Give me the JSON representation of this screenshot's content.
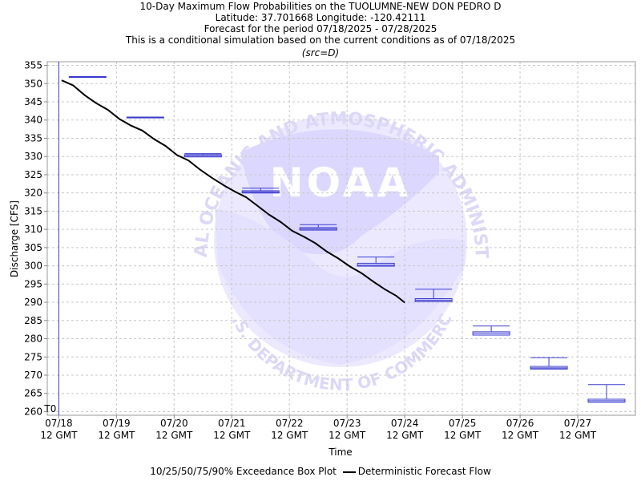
{
  "header": {
    "line1": "10-Day Maximum Flow Probabilities on the TUOLUMNE-NEW DON PEDRO D",
    "line2": "Latitude: 37.701668 Longitude: -120.42111",
    "line3": "Forecast for the period 07/18/2025 - 07/28/2025",
    "line4": "This is a conditional simulation based on the current conditions as of 07/18/2025",
    "line5": "(src=D)"
  },
  "watermark": {
    "logo_text": "NOAA",
    "arc_top": "NATIONAL OCEANIC AND ATMOSPHERIC ADMINISTRATION",
    "arc_bottom": "U.S. DEPARTMENT OF COMMERCE"
  },
  "legend": {
    "box_label": "10/25/50/75/90% Exceedance Box Plot",
    "line_label": "Deterministic Forecast Flow"
  },
  "chart_data": {
    "type": "box-and-line",
    "ylabel": "Discharge [CFS]",
    "xlabel": "Time",
    "ylim": [
      259,
      356
    ],
    "yticks": [
      260,
      265,
      270,
      275,
      280,
      285,
      290,
      295,
      300,
      305,
      310,
      315,
      320,
      325,
      330,
      335,
      340,
      345,
      350,
      355
    ],
    "xlim_days": [
      -0.2,
      10.0
    ],
    "x_ticks": [
      {
        "day": 0,
        "date": "07/18",
        "time": "12 GMT"
      },
      {
        "day": 1,
        "date": "07/19",
        "time": "12 GMT"
      },
      {
        "day": 2,
        "date": "07/20",
        "time": "12 GMT"
      },
      {
        "day": 3,
        "date": "07/21",
        "time": "12 GMT"
      },
      {
        "day": 4,
        "date": "07/22",
        "time": "12 GMT"
      },
      {
        "day": 5,
        "date": "07/23",
        "time": "12 GMT"
      },
      {
        "day": 6,
        "date": "07/24",
        "time": "12 GMT"
      },
      {
        "day": 7,
        "date": "07/25",
        "time": "12 GMT"
      },
      {
        "day": 8,
        "date": "07/26",
        "time": "12 GMT"
      },
      {
        "day": 9,
        "date": "07/27",
        "time": "12 GMT"
      }
    ],
    "t0": {
      "day": 0,
      "label": "T0"
    },
    "grid": true,
    "legend_position": "bottom",
    "colors": {
      "box": "#3b3bd0",
      "line": "#000000",
      "t0": "#3b3bd0",
      "grid": "#c8c8c8"
    },
    "exceedance_boxes": [
      {
        "day": 0.5,
        "p90": 351.9,
        "p75": 351.9,
        "p50": 351.9,
        "p25": 351.9,
        "p10": 351.9
      },
      {
        "day": 1.5,
        "p90": 340.8,
        "p75": 340.8,
        "p50": 340.8,
        "p25": 340.8,
        "p10": 340.8
      },
      {
        "day": 2.5,
        "p90": 330.8,
        "p75": 330.5,
        "p50": 330.3,
        "p25": 329.9,
        "p10": 329.9
      },
      {
        "day": 3.5,
        "p90": 321.3,
        "p75": 320.6,
        "p50": 320.3,
        "p25": 320.0,
        "p10": 320.0
      },
      {
        "day": 4.5,
        "p90": 311.3,
        "p75": 310.5,
        "p50": 310.1,
        "p25": 309.8,
        "p10": 309.8
      },
      {
        "day": 5.5,
        "p90": 302.4,
        "p75": 300.7,
        "p50": 300.2,
        "p25": 299.9,
        "p10": 299.9
      },
      {
        "day": 6.5,
        "p90": 293.6,
        "p75": 291.0,
        "p50": 290.6,
        "p25": 290.2,
        "p10": 290.2
      },
      {
        "day": 7.5,
        "p90": 283.5,
        "p75": 281.9,
        "p50": 281.5,
        "p25": 281.0,
        "p10": 281.0
      },
      {
        "day": 8.5,
        "p90": 274.8,
        "p75": 272.4,
        "p50": 272.0,
        "p25": 271.7,
        "p10": 271.7
      },
      {
        "day": 9.5,
        "p90": 267.4,
        "p75": 263.4,
        "p50": 263.0,
        "p25": 262.6,
        "p10": 262.6
      }
    ],
    "deterministic_flow": {
      "name": "Deterministic Forecast Flow",
      "days": [
        0.05,
        0.25,
        0.45,
        0.65,
        0.85,
        1.05,
        1.25,
        1.45,
        1.65,
        1.85,
        2.05,
        2.25,
        2.45,
        2.65,
        2.85,
        3.05,
        3.25,
        3.45,
        3.65,
        3.85,
        4.05,
        4.25,
        4.45,
        4.65,
        4.85,
        5.05,
        5.25,
        5.45,
        5.65,
        5.85,
        6.0
      ],
      "values": [
        350.9,
        349.5,
        346.8,
        344.6,
        342.8,
        340.3,
        338.5,
        337.1,
        334.8,
        332.9,
        330.4,
        328.9,
        326.4,
        324.2,
        322.2,
        320.4,
        318.8,
        316.4,
        314.0,
        312.0,
        309.6,
        308.0,
        306.2,
        303.9,
        302.0,
        299.8,
        298.0,
        295.7,
        293.6,
        291.8,
        289.9
      ]
    }
  }
}
